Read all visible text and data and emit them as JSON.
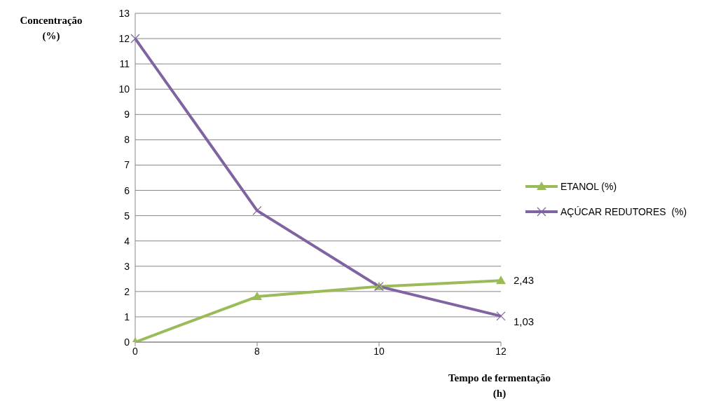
{
  "chart_data": {
    "type": "line",
    "ylabel": "Concentração\n(%)",
    "xlabel": "Tempo de fermentação\n(h)",
    "categories": [
      "0",
      "8",
      "10",
      "12"
    ],
    "series": [
      {
        "name": "ETANOL (%)",
        "color": "#9bbb59",
        "marker": "triangle",
        "values": [
          0,
          1.8,
          2.2,
          2.43
        ],
        "value_labels": [
          null,
          null,
          null,
          "2,43"
        ]
      },
      {
        "name": "AÇÚCAR REDUTORES  (%)",
        "color": "#8064a2",
        "marker": "cross",
        "values": [
          12,
          5.2,
          2.2,
          1.03
        ],
        "value_labels": [
          null,
          null,
          null,
          "1,03"
        ]
      }
    ],
    "ylim": [
      0,
      13
    ],
    "yticks": [
      0,
      1,
      2,
      3,
      4,
      5,
      6,
      7,
      8,
      9,
      10,
      11,
      12,
      13
    ],
    "grid": "y",
    "legend": "right"
  }
}
